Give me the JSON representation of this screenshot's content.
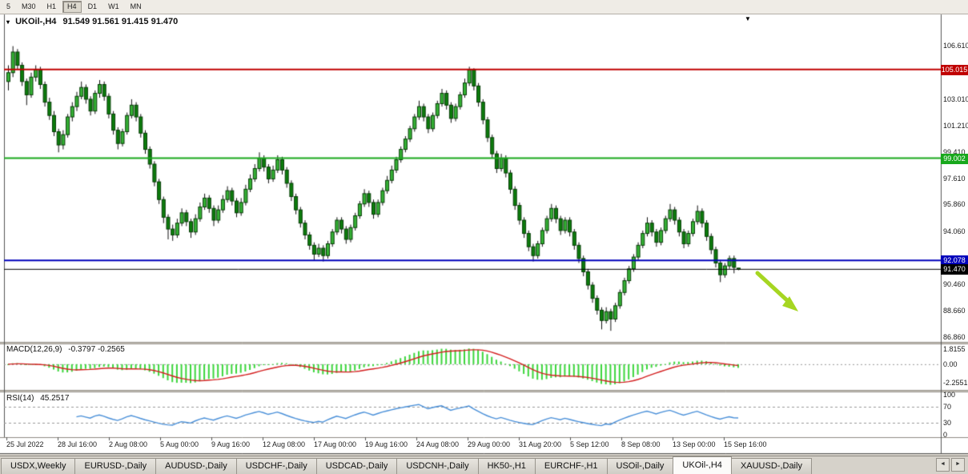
{
  "toolbar": {
    "timeframes": [
      "5",
      "M30",
      "H1",
      "H4",
      "D1",
      "W1",
      "MN"
    ],
    "active": "H4"
  },
  "chart": {
    "title": "UKOil-,H4",
    "ohlc_text": "91.549 91.561 91.415 91.470",
    "dropdown_icon": "▾",
    "shift_marker_icon": "▼"
  },
  "price_axis": {
    "ticks": [
      {
        "label": "106.610",
        "value": 106.61
      },
      {
        "label": "103.010",
        "value": 103.01
      },
      {
        "label": "101.210",
        "value": 101.21
      },
      {
        "label": "99.410",
        "value": 99.41
      },
      {
        "label": "97.610",
        "value": 97.61
      },
      {
        "label": "95.860",
        "value": 95.86
      },
      {
        "label": "94.060",
        "value": 94.06
      },
      {
        "label": "90.460",
        "value": 90.46
      },
      {
        "label": "88.660",
        "value": 88.66
      },
      {
        "label": "86.860",
        "value": 86.86
      }
    ],
    "badges": [
      {
        "label": "105.015",
        "value": 105.015,
        "bg": "#C00000"
      },
      {
        "label": "99.002",
        "value": 99.002,
        "bg": "#18A81C"
      },
      {
        "label": "92.078",
        "value": 92.078,
        "bg": "#0000BB"
      },
      {
        "label": "91.470",
        "value": 91.47,
        "bg": "#000000"
      }
    ]
  },
  "indicators": {
    "macd": {
      "label": "MACD(12,26,9)",
      "values_text": "-0.3797 -0.2565",
      "axis": [
        {
          "label": "1.8155",
          "value": 1.8155
        },
        {
          "label": "0.00",
          "value": 0
        },
        {
          "label": "-2.2551",
          "value": -2.2551
        }
      ],
      "histogram_color": "#3CD63C",
      "signal_color": "#D42020"
    },
    "rsi": {
      "label": "RSI(14)",
      "value_text": "45.2517",
      "axis": [
        {
          "label": "100",
          "value": 100
        },
        {
          "label": "70",
          "value": 70
        },
        {
          "label": "30",
          "value": 30
        },
        {
          "label": "0",
          "value": 0
        }
      ],
      "line_color": "#4A90D9",
      "level_lines": [
        70,
        30
      ]
    }
  },
  "time_axis": {
    "labels": [
      "25 Jul 2022",
      "28 Jul 16:00",
      "2 Aug 08:00",
      "5 Aug 00:00",
      "9 Aug 16:00",
      "12 Aug 08:00",
      "17 Aug 00:00",
      "19 Aug 16:00",
      "24 Aug 08:00",
      "29 Aug 00:00",
      "31 Aug 20:00",
      "5 Sep 12:00",
      "8 Sep 08:00",
      "13 Sep 00:00",
      "15 Sep 16:00"
    ]
  },
  "annotation": {
    "type": "arrow",
    "color": "#A6D622",
    "direction": "down-right"
  },
  "tabs": {
    "items": [
      "USDX,Weekly",
      "EURUSD-,Daily",
      "AUDUSD-,Daily",
      "USDCHF-,Daily",
      "USDCAD-,Daily",
      "USDCNH-,Daily",
      "HK50-,H1",
      "EURCHF-,H1",
      "USOil-,Daily",
      "UKOil-,H4",
      "XAUUSD-,Daily"
    ],
    "active": "UKOil-,H4",
    "scroll_left_icon": "◄",
    "scroll_right_icon": "►"
  },
  "chart_data": {
    "type": "candlestick",
    "symbol": "UKOil-",
    "timeframe": "H4",
    "current_bar": {
      "open": 91.549,
      "high": 91.561,
      "low": 91.415,
      "close": 91.47
    },
    "visible_price_range": [
      86.55,
      108.75
    ],
    "price_lines": [
      {
        "value": 105.015,
        "color": "#C00000",
        "width": 2
      },
      {
        "value": 99.002,
        "color": "#18A81C",
        "width": 2
      },
      {
        "value": 92.078,
        "color": "#0000BB",
        "width": 2
      },
      {
        "value": 91.47,
        "color": "#000000",
        "width": 1
      }
    ],
    "colors": {
      "candle_up": "#35B235",
      "candle_down": "#0C7D0C",
      "candle_border": "#073C07",
      "wick": "#111111"
    },
    "candles": [
      [
        104.2,
        105.3,
        103.6,
        104.8
      ],
      [
        104.8,
        106.6,
        104.5,
        106.2
      ],
      [
        106.2,
        106.4,
        105.0,
        105.3
      ],
      [
        105.3,
        105.5,
        103.9,
        104.2
      ],
      [
        104.2,
        104.4,
        102.6,
        103.3
      ],
      [
        103.3,
        104.8,
        103.1,
        104.5
      ],
      [
        104.5,
        105.3,
        104.2,
        105.0
      ],
      [
        105.0,
        105.2,
        103.7,
        104.0
      ],
      [
        104.0,
        104.2,
        102.5,
        102.8
      ],
      [
        102.8,
        103.1,
        101.6,
        101.9
      ],
      [
        101.9,
        102.2,
        100.5,
        100.8
      ],
      [
        100.8,
        101.0,
        99.4,
        99.9
      ],
      [
        99.9,
        100.9,
        99.6,
        100.6
      ],
      [
        100.6,
        102.0,
        100.4,
        101.8
      ],
      [
        101.8,
        102.8,
        101.5,
        102.5
      ],
      [
        102.5,
        103.5,
        102.2,
        103.2
      ],
      [
        103.2,
        104.2,
        103.0,
        103.8
      ],
      [
        103.8,
        104.0,
        102.7,
        103.0
      ],
      [
        103.0,
        103.2,
        101.9,
        102.2
      ],
      [
        102.2,
        103.6,
        102.0,
        103.4
      ],
      [
        103.4,
        104.3,
        103.1,
        104.0
      ],
      [
        104.0,
        104.2,
        102.9,
        103.2
      ],
      [
        103.2,
        103.4,
        101.7,
        102.0
      ],
      [
        102.0,
        102.2,
        100.6,
        100.9
      ],
      [
        100.9,
        101.1,
        99.6,
        100.0
      ],
      [
        100.0,
        101.0,
        99.8,
        100.8
      ],
      [
        100.8,
        102.1,
        100.6,
        101.9
      ],
      [
        101.9,
        103.0,
        101.7,
        102.6
      ],
      [
        102.6,
        102.8,
        101.5,
        101.8
      ],
      [
        101.8,
        102.0,
        100.4,
        100.7
      ],
      [
        100.7,
        100.9,
        99.3,
        99.6
      ],
      [
        99.6,
        99.8,
        98.3,
        98.6
      ],
      [
        98.6,
        98.8,
        97.1,
        97.4
      ],
      [
        97.4,
        97.6,
        95.9,
        96.2
      ],
      [
        96.2,
        96.4,
        94.6,
        95.0
      ],
      [
        95.0,
        95.2,
        93.5,
        94.2
      ],
      [
        94.2,
        94.5,
        93.4,
        93.8
      ],
      [
        93.8,
        94.9,
        93.6,
        94.6
      ],
      [
        94.6,
        95.6,
        94.4,
        95.3
      ],
      [
        95.3,
        95.5,
        94.4,
        94.7
      ],
      [
        94.7,
        94.9,
        93.6,
        94.0
      ],
      [
        94.0,
        95.2,
        93.8,
        94.9
      ],
      [
        94.9,
        96.0,
        94.7,
        95.7
      ],
      [
        95.7,
        96.6,
        95.5,
        96.3
      ],
      [
        96.3,
        96.5,
        95.3,
        95.6
      ],
      [
        95.6,
        95.8,
        94.4,
        94.8
      ],
      [
        94.8,
        95.8,
        94.6,
        95.5
      ],
      [
        95.5,
        96.5,
        95.3,
        96.2
      ],
      [
        96.2,
        97.1,
        96.0,
        96.8
      ],
      [
        96.8,
        97.0,
        95.8,
        96.1
      ],
      [
        96.1,
        96.3,
        95.0,
        95.3
      ],
      [
        95.3,
        96.3,
        95.1,
        96.0
      ],
      [
        96.0,
        97.2,
        95.8,
        96.9
      ],
      [
        96.9,
        97.9,
        96.7,
        97.6
      ],
      [
        97.6,
        98.6,
        97.4,
        98.3
      ],
      [
        98.3,
        99.4,
        98.1,
        99.0
      ],
      [
        99.0,
        99.2,
        98.1,
        98.4
      ],
      [
        98.4,
        98.6,
        97.3,
        97.6
      ],
      [
        97.6,
        98.5,
        97.4,
        98.2
      ],
      [
        98.2,
        99.2,
        98.0,
        98.9
      ],
      [
        98.9,
        99.1,
        97.9,
        98.2
      ],
      [
        98.2,
        98.4,
        97.0,
        97.3
      ],
      [
        97.3,
        97.5,
        96.1,
        96.4
      ],
      [
        96.4,
        96.6,
        95.2,
        95.5
      ],
      [
        95.5,
        95.7,
        94.3,
        94.6
      ],
      [
        94.6,
        94.8,
        93.5,
        93.8
      ],
      [
        93.8,
        94.0,
        92.8,
        93.1
      ],
      [
        93.1,
        93.3,
        92.1,
        92.5
      ],
      [
        92.5,
        93.2,
        92.3,
        92.9
      ],
      [
        92.9,
        93.1,
        92.0,
        92.4
      ],
      [
        92.4,
        93.4,
        92.2,
        93.2
      ],
      [
        93.2,
        94.2,
        93.0,
        94.0
      ],
      [
        94.0,
        95.0,
        93.8,
        94.8
      ],
      [
        94.8,
        95.0,
        93.9,
        94.2
      ],
      [
        94.2,
        94.4,
        93.2,
        93.5
      ],
      [
        93.5,
        94.5,
        93.3,
        94.3
      ],
      [
        94.3,
        95.3,
        94.1,
        95.1
      ],
      [
        95.1,
        96.1,
        94.9,
        95.9
      ],
      [
        95.9,
        96.9,
        95.7,
        96.6
      ],
      [
        96.6,
        96.8,
        95.7,
        96.0
      ],
      [
        96.0,
        96.2,
        94.9,
        95.2
      ],
      [
        95.2,
        96.2,
        95.0,
        96.0
      ],
      [
        96.0,
        97.0,
        95.8,
        96.8
      ],
      [
        96.8,
        97.8,
        96.6,
        97.5
      ],
      [
        97.5,
        98.5,
        97.3,
        98.2
      ],
      [
        98.2,
        99.1,
        98.0,
        98.9
      ],
      [
        98.9,
        99.8,
        98.7,
        99.6
      ],
      [
        99.6,
        100.5,
        99.4,
        100.3
      ],
      [
        100.3,
        101.2,
        100.1,
        101.0
      ],
      [
        101.0,
        102.0,
        100.8,
        101.8
      ],
      [
        101.8,
        102.9,
        101.6,
        102.5
      ],
      [
        102.5,
        102.7,
        101.5,
        101.8
      ],
      [
        101.8,
        102.0,
        100.7,
        101.0
      ],
      [
        101.0,
        102.1,
        100.8,
        101.9
      ],
      [
        101.9,
        102.9,
        101.7,
        102.7
      ],
      [
        102.7,
        103.7,
        102.5,
        103.4
      ],
      [
        103.4,
        103.6,
        102.3,
        102.6
      ],
      [
        102.6,
        102.8,
        101.4,
        101.7
      ],
      [
        101.7,
        102.7,
        101.5,
        102.5
      ],
      [
        102.5,
        103.5,
        102.3,
        103.3
      ],
      [
        103.3,
        104.4,
        103.1,
        104.1
      ],
      [
        104.1,
        105.2,
        103.9,
        105.0
      ],
      [
        105.0,
        105.1,
        103.6,
        103.9
      ],
      [
        103.9,
        104.1,
        102.5,
        102.8
      ],
      [
        102.8,
        103.0,
        101.3,
        101.6
      ],
      [
        101.6,
        101.8,
        100.1,
        100.4
      ],
      [
        100.4,
        100.6,
        99.0,
        99.3
      ],
      [
        99.3,
        99.5,
        98.0,
        98.3
      ],
      [
        98.3,
        99.3,
        98.1,
        99.0
      ],
      [
        99.0,
        99.2,
        97.7,
        98.0
      ],
      [
        98.0,
        98.2,
        96.6,
        96.9
      ],
      [
        96.9,
        97.1,
        95.5,
        95.8
      ],
      [
        95.8,
        96.0,
        94.5,
        94.8
      ],
      [
        94.8,
        95.0,
        93.6,
        93.9
      ],
      [
        93.9,
        94.1,
        92.7,
        93.0
      ],
      [
        93.0,
        93.2,
        92.0,
        92.4
      ],
      [
        92.4,
        93.4,
        92.2,
        93.2
      ],
      [
        93.2,
        94.3,
        93.0,
        94.1
      ],
      [
        94.1,
        95.1,
        93.9,
        94.9
      ],
      [
        94.9,
        95.9,
        94.7,
        95.6
      ],
      [
        95.6,
        95.8,
        94.6,
        94.9
      ],
      [
        94.9,
        95.1,
        93.8,
        94.1
      ],
      [
        94.1,
        95.0,
        93.9,
        94.8
      ],
      [
        94.8,
        95.0,
        93.7,
        94.0
      ],
      [
        94.0,
        94.2,
        92.8,
        93.1
      ],
      [
        93.1,
        93.3,
        91.9,
        92.2
      ],
      [
        92.2,
        92.4,
        91.0,
        91.3
      ],
      [
        91.3,
        91.5,
        90.1,
        90.4
      ],
      [
        90.4,
        90.6,
        89.2,
        89.5
      ],
      [
        89.5,
        89.7,
        88.4,
        88.7
      ],
      [
        88.7,
        88.9,
        87.4,
        88.0
      ],
      [
        88.0,
        88.9,
        87.8,
        88.6
      ],
      [
        88.6,
        88.8,
        87.3,
        88.1
      ],
      [
        88.1,
        89.2,
        87.9,
        89.0
      ],
      [
        89.0,
        90.1,
        88.8,
        89.9
      ],
      [
        89.9,
        90.9,
        89.7,
        90.7
      ],
      [
        90.7,
        91.7,
        90.5,
        91.5
      ],
      [
        91.5,
        92.5,
        91.3,
        92.3
      ],
      [
        92.3,
        93.3,
        92.1,
        93.1
      ],
      [
        93.1,
        94.1,
        92.9,
        93.9
      ],
      [
        93.9,
        95.0,
        93.7,
        94.6
      ],
      [
        94.6,
        94.8,
        93.7,
        94.0
      ],
      [
        94.0,
        94.2,
        93.0,
        93.3
      ],
      [
        93.3,
        94.3,
        93.1,
        94.1
      ],
      [
        94.1,
        95.1,
        93.9,
        94.9
      ],
      [
        94.9,
        95.9,
        94.7,
        95.5
      ],
      [
        95.5,
        95.7,
        94.5,
        94.8
      ],
      [
        94.8,
        95.0,
        93.7,
        94.0
      ],
      [
        94.0,
        94.2,
        92.9,
        93.2
      ],
      [
        93.2,
        94.1,
        93.0,
        93.9
      ],
      [
        93.9,
        94.9,
        93.7,
        94.7
      ],
      [
        94.7,
        95.8,
        94.5,
        95.4
      ],
      [
        95.4,
        95.6,
        94.3,
        94.6
      ],
      [
        94.6,
        94.8,
        93.4,
        93.7
      ],
      [
        93.7,
        93.9,
        92.5,
        92.8
      ],
      [
        92.8,
        93.0,
        91.6,
        91.9
      ],
      [
        91.9,
        92.1,
        90.6,
        91.1
      ],
      [
        91.1,
        91.9,
        90.9,
        91.7
      ],
      [
        91.7,
        92.4,
        91.5,
        92.2
      ],
      [
        92.2,
        92.4,
        91.2,
        91.6
      ],
      [
        91.55,
        91.56,
        91.41,
        91.47
      ]
    ]
  }
}
